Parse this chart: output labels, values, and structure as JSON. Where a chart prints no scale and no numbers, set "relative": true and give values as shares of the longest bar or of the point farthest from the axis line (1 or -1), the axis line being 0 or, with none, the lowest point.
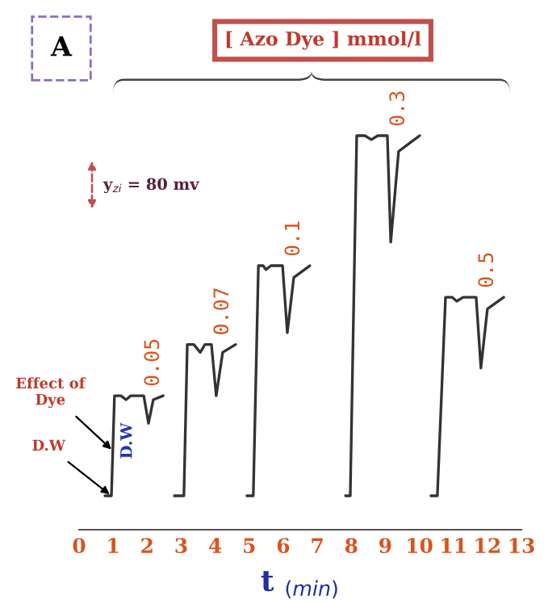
{
  "chart_data": {
    "type": "line",
    "relative": true,
    "title": "[ Azo Dye ] mmol/l",
    "xlabel": "t $_{(min)}$",
    "xlim": [
      0,
      13
    ],
    "xticks": [
      0,
      1,
      2,
      3,
      4,
      5,
      6,
      7,
      8,
      9,
      10,
      11,
      12,
      13
    ],
    "tick_labels": "x",
    "grid": false,
    "legend": false,
    "series": [
      {
        "color": "#333333",
        "x": [
          0.76,
          0.95,
          1.04,
          1.23,
          1.38,
          1.52,
          1.9,
          2.04,
          2.18,
          2.47,
          2.6,
          2.8,
          3.08,
          3.18,
          3.37,
          3.56,
          3.7,
          3.89,
          4.03,
          4.22,
          4.6,
          4.75,
          4.93,
          5.12,
          5.27,
          5.41,
          5.49,
          5.64,
          5.98,
          6.12,
          6.31,
          6.78,
          7.3,
          7.83,
          7.97,
          8.16,
          8.4,
          8.59,
          8.78,
          9.06,
          9.16,
          9.39,
          10.01,
          10.2,
          10.34,
          10.53,
          10.77,
          10.96,
          11.1,
          11.29,
          11.67,
          11.81,
          12.0,
          12.48
        ],
        "values": [
          0.086,
          0.086,
          0.34,
          0.34,
          0.33,
          0.34,
          0.34,
          0.27,
          0.33,
          0.34,
          null,
          0.086,
          0.086,
          0.47,
          0.47,
          0.45,
          0.47,
          0.47,
          0.34,
          0.45,
          0.47,
          null,
          0.086,
          0.086,
          0.67,
          0.67,
          0.66,
          0.67,
          0.67,
          0.5,
          0.64,
          0.67,
          null,
          0.086,
          0.086,
          1.0,
          1.0,
          0.99,
          1.0,
          1.0,
          0.73,
          0.96,
          1.0,
          null,
          0.086,
          0.086,
          0.59,
          0.59,
          0.58,
          0.59,
          0.59,
          0.41,
          0.56,
          0.59
        ]
      }
    ],
    "annotations": [
      "A",
      "y$_{zi}$ = 80 mv",
      {
        "text": "0.05",
        "x": 2.18,
        "y": 0.33
      },
      {
        "text": "0.07",
        "x": 4.22,
        "y": 0.45
      },
      {
        "text": "0.1",
        "x": 6.31,
        "y": 0.64
      },
      {
        "text": "0.3",
        "x": 9.39,
        "y": 0.96
      },
      {
        "text": "0.5",
        "x": 12.0,
        "y": 0.56
      },
      "D.W",
      {
        "text": "Effect of\nDye",
        "x": 1.0,
        "y": 0.2
      },
      {
        "text": "D.W",
        "x": 0.95,
        "y": 0.086
      }
    ]
  }
}
